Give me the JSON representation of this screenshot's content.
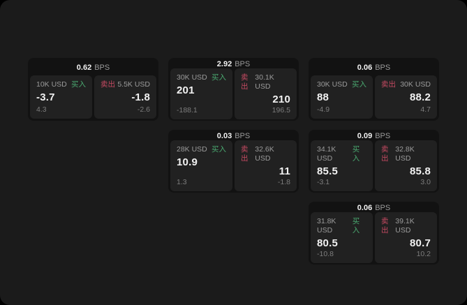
{
  "theme": {
    "outer_bg": "#000000",
    "page_bg": "#1b1b1b",
    "card_bg": "#121212",
    "panel_bg": "#212121",
    "text_primary": "#f2f2f2",
    "text_secondary": "#9b9b9b",
    "text_muted": "#7d7d7d",
    "buy_color": "#4aa970",
    "sell_color": "#c64a62"
  },
  "labels": {
    "bps_unit": "BPS",
    "buy": "买入",
    "sell": "卖出"
  },
  "cards": [
    {
      "bps": "0.62",
      "grid": {
        "col": 1,
        "row": 1
      },
      "buy": {
        "amount": "10K USD",
        "value": "-3.7",
        "sub": "4.3"
      },
      "sell": {
        "amount": "5.5K USD",
        "value": "-1.8",
        "sub": "-2.6"
      }
    },
    {
      "bps": "2.92",
      "grid": {
        "col": 2,
        "row": 1
      },
      "buy": {
        "amount": "30K USD",
        "value": "201",
        "sub": "-188.1"
      },
      "sell": {
        "amount": "30.1K USD",
        "value": "210",
        "sub": "196.5"
      }
    },
    {
      "bps": "0.06",
      "grid": {
        "col": 3,
        "row": 1
      },
      "buy": {
        "amount": "30K USD",
        "value": "88",
        "sub": "-4.9"
      },
      "sell": {
        "amount": "30K USD",
        "value": "88.2",
        "sub": "4.7"
      }
    },
    {
      "bps": "0.03",
      "grid": {
        "col": 2,
        "row": 2
      },
      "buy": {
        "amount": "28K USD",
        "value": "10.9",
        "sub": "1.3"
      },
      "sell": {
        "amount": "32.6K USD",
        "value": "11",
        "sub": "-1.8"
      }
    },
    {
      "bps": "0.09",
      "grid": {
        "col": 3,
        "row": 2
      },
      "buy": {
        "amount": "34.1K USD",
        "value": "85.5",
        "sub": "-3.1"
      },
      "sell": {
        "amount": "32.8K USD",
        "value": "85.8",
        "sub": "3.0"
      }
    },
    {
      "bps": "0.06",
      "grid": {
        "col": 3,
        "row": 3
      },
      "buy": {
        "amount": "31.8K USD",
        "value": "80.5",
        "sub": "-10.8"
      },
      "sell": {
        "amount": "39.1K USD",
        "value": "80.7",
        "sub": "10.2"
      }
    }
  ]
}
